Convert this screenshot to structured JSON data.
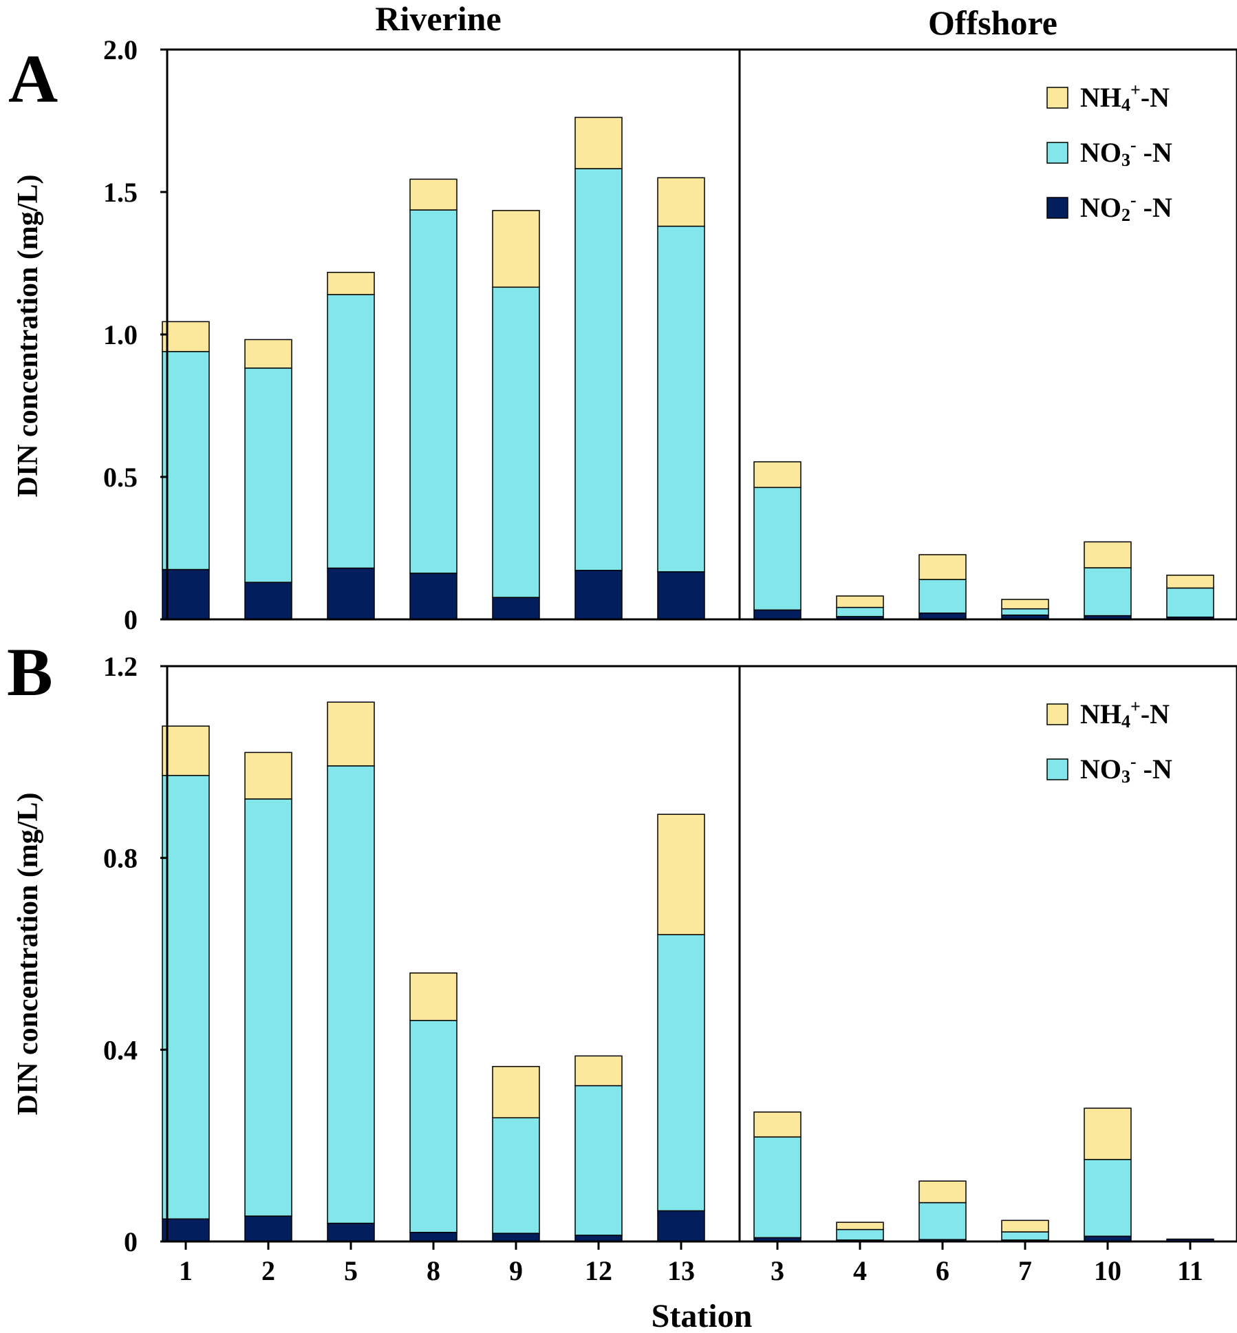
{
  "chart_data": [
    {
      "type": "bar",
      "stacked": true,
      "panel": "A",
      "group_labels": [
        "Riverine",
        "Offshore"
      ],
      "categories": [
        "1",
        "2",
        "5",
        "8",
        "9",
        "12",
        "13",
        "3",
        "4",
        "6",
        "7",
        "10",
        "11"
      ],
      "xlabel": "Station",
      "ylabel": "DIN concentration (mg/L)",
      "ylim": [
        0,
        2.0
      ],
      "yticks": [
        "0",
        "0.5",
        "1.0",
        "1.5",
        "2.0"
      ],
      "legend_position": "top-right",
      "series": [
        {
          "name": "NO₂⁻-N",
          "legend_main": "NO",
          "legend_sub": "2",
          "legend_sup": "-",
          "legend_tail": " -N",
          "color": "#031e5c",
          "values": [
            0.175,
            0.13,
            0.18,
            0.162,
            0.077,
            0.172,
            0.167,
            0.033,
            0.01,
            0.022,
            0.015,
            0.013,
            0.008
          ]
        },
        {
          "name": "NO₃⁻-N",
          "legend_main": "NO",
          "legend_sub": "3",
          "legend_sup": "-",
          "legend_tail": " -N",
          "color": "#83e6ea",
          "values": [
            0.765,
            0.752,
            0.96,
            1.275,
            1.089,
            1.41,
            1.213,
            0.43,
            0.032,
            0.118,
            0.022,
            0.168,
            0.102
          ]
        },
        {
          "name": "NH₄⁺-N",
          "legend_main": "NH",
          "legend_sub": "4",
          "legend_sup": "+",
          "legend_tail": "-N",
          "color": "#fce89c",
          "values": [
            0.105,
            0.1,
            0.078,
            0.108,
            0.269,
            0.18,
            0.17,
            0.09,
            0.04,
            0.087,
            0.033,
            0.091,
            0.045
          ]
        }
      ]
    },
    {
      "type": "bar",
      "stacked": true,
      "panel": "B",
      "categories": [
        "1",
        "2",
        "5",
        "8",
        "9",
        "12",
        "13",
        "3",
        "4",
        "6",
        "7",
        "10",
        "11"
      ],
      "xlabel": "Station",
      "ylabel": "DIN concentration (mg/L)",
      "ylim": [
        0,
        1.2
      ],
      "yticks": [
        "0",
        "0.4",
        "0.8",
        "1.2"
      ],
      "legend_position": "top-right",
      "series": [
        {
          "name": "NO₂⁻-N",
          "color": "#031e5c",
          "in_legend": false,
          "values": [
            0.047,
            0.053,
            0.038,
            0.019,
            0.017,
            0.013,
            0.064,
            0.008,
            0.003,
            0.004,
            0.003,
            0.011,
            0.005
          ]
        },
        {
          "name": "NO₃⁻-N",
          "legend_main": "NO",
          "legend_sub": "3",
          "legend_sup": "-",
          "legend_tail": " -N",
          "color": "#83e6ea",
          "values": [
            0.925,
            0.87,
            0.954,
            0.442,
            0.241,
            0.312,
            0.576,
            0.21,
            0.022,
            0.077,
            0.017,
            0.16,
            0.0
          ]
        },
        {
          "name": "NH₄⁺-N",
          "legend_main": "NH",
          "legend_sub": "4",
          "legend_sup": "+",
          "legend_tail": "-N",
          "color": "#fce89c",
          "values": [
            0.103,
            0.097,
            0.133,
            0.099,
            0.107,
            0.062,
            0.251,
            0.052,
            0.015,
            0.045,
            0.024,
            0.107,
            0.0
          ]
        }
      ]
    }
  ]
}
